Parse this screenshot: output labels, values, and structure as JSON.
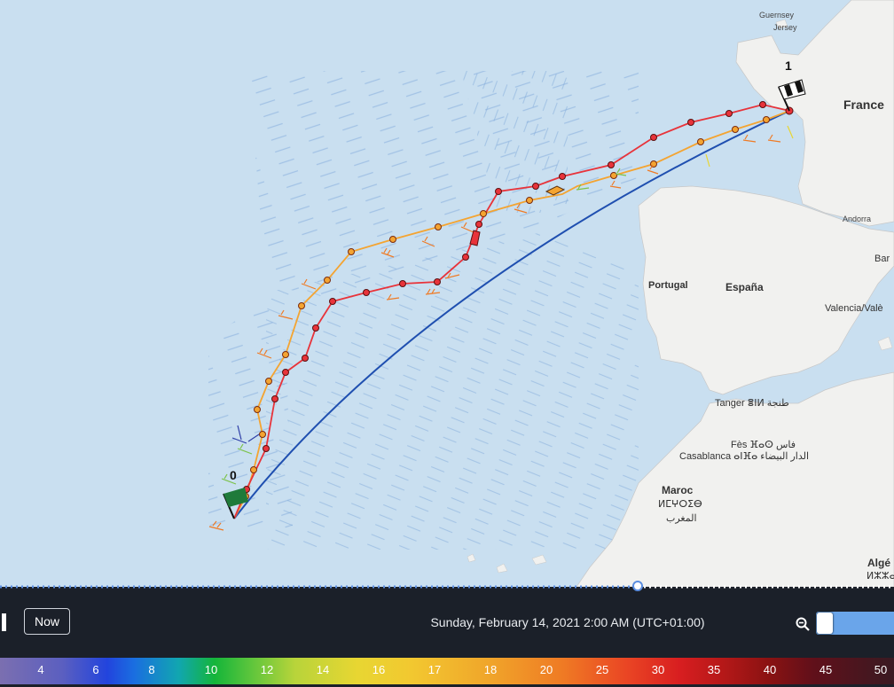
{
  "map": {
    "labels": {
      "guernsey": "Guernsey",
      "jersey": "Jersey",
      "france": "France",
      "andorra": "Andorra",
      "bar": "Bar",
      "portugal": "Portugal",
      "espana": "España",
      "valencia": "Valencia/Valè",
      "tanger": "Tanger ⴻⵏⵍ طنجة",
      "fes": "Fès ⴼⴰⵙ فاس",
      "casablanca": "Casablanca ⴰⵏⴼⴰ الدار البيضاء",
      "maroc": "Maroc",
      "maroc_tf": "ⵍⵎⵖⵔⵉⴱ",
      "maroc_ar": "المغرب",
      "alge": "Algé",
      "alge_tf": "ⵍⵣⵣⴰ"
    },
    "waypoints": {
      "start": "0",
      "finish": "1"
    },
    "colors": {
      "sea": "#c9dff0",
      "land": "#f1f1ef",
      "route_red": "#e8333a",
      "route_orange": "#f4a431",
      "great_circle": "#1f4fb0"
    },
    "icons": {
      "start_flag": "green-flag-icon",
      "finish_flag": "checkered-flag-icon",
      "boat_red": "boat-icon",
      "boat_orange": "boat-icon"
    }
  },
  "timeline": {
    "now_label": "Now",
    "date_label": "Sunday, February 14, 2021 2:00 AM (UTC+01:00)",
    "zoom_icon": "zoom-out-icon"
  },
  "wind_scale": {
    "labels": [
      "4",
      "6",
      "8",
      "10",
      "12",
      "14",
      "16",
      "17",
      "18",
      "20",
      "25",
      "30",
      "35",
      "40",
      "45",
      "50"
    ]
  }
}
